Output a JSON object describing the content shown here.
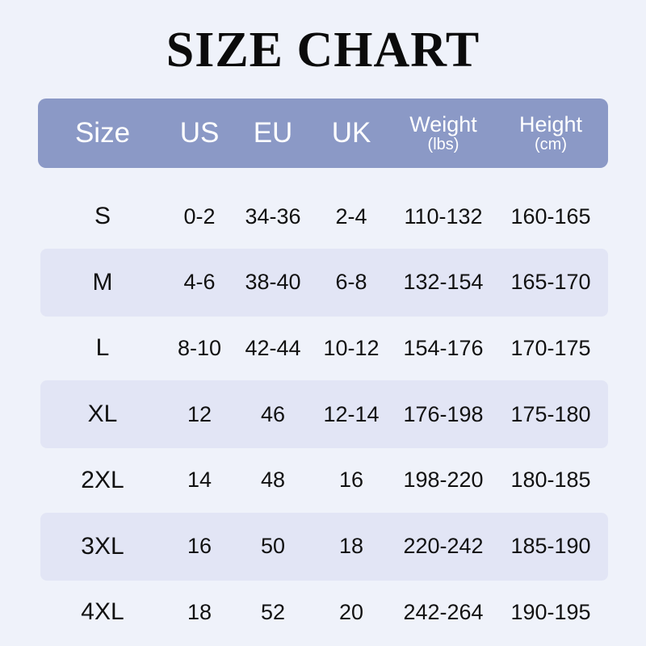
{
  "title": "SIZE CHART",
  "colors": {
    "header_bg": "#8b99c6",
    "stripe_bg": "#e2e5f5",
    "page_bg": "#eff2fa"
  },
  "columns": [
    {
      "label": "Size",
      "unit": ""
    },
    {
      "label": "US",
      "unit": ""
    },
    {
      "label": "EU",
      "unit": ""
    },
    {
      "label": "UK",
      "unit": ""
    },
    {
      "label": "Weight",
      "unit": "(lbs)"
    },
    {
      "label": "Height",
      "unit": "(cm)"
    }
  ],
  "rows": [
    [
      "S",
      "0-2",
      "34-36",
      "2-4",
      "110-132",
      "160-165"
    ],
    [
      "M",
      "4-6",
      "38-40",
      "6-8",
      "132-154",
      "165-170"
    ],
    [
      "L",
      "8-10",
      "42-44",
      "10-12",
      "154-176",
      "170-175"
    ],
    [
      "XL",
      "12",
      "46",
      "12-14",
      "176-198",
      "175-180"
    ],
    [
      "2XL",
      "14",
      "48",
      "16",
      "198-220",
      "180-185"
    ],
    [
      "3XL",
      "16",
      "50",
      "18",
      "220-242",
      "185-190"
    ],
    [
      "4XL",
      "18",
      "52",
      "20",
      "242-264",
      "190-195"
    ]
  ]
}
